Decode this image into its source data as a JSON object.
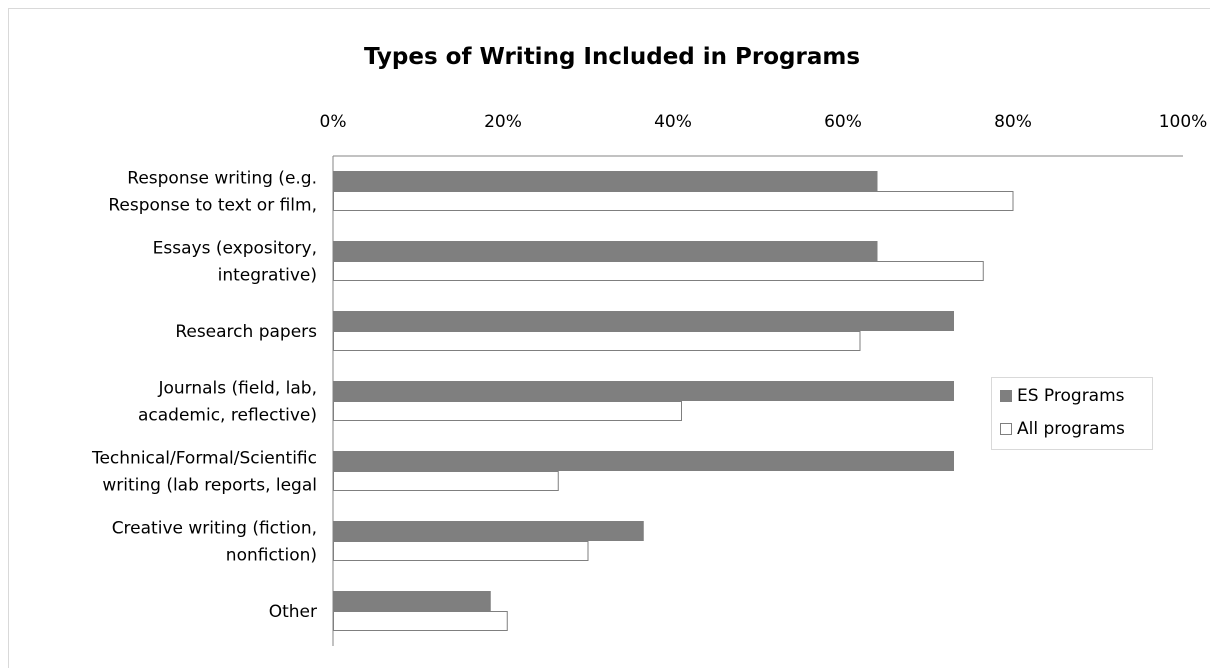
{
  "chart_data": {
    "type": "bar",
    "orientation": "horizontal",
    "title": "Types of Writing Included in Programs",
    "categories": [
      [
        "Response writing (e.g.",
        "Response to text or film,"
      ],
      [
        "Essays (expository,",
        "integrative)"
      ],
      [
        "Research papers"
      ],
      [
        "Journals (field, lab,",
        "academic, reflective)"
      ],
      [
        "Technical/Formal/Scientific",
        "writing (lab reports, legal"
      ],
      [
        "Creative writing (fiction,",
        "nonfiction)"
      ],
      [
        "Other"
      ]
    ],
    "series": [
      {
        "name": "ES Programs",
        "color": "#7f7f7f",
        "values": [
          64,
          64,
          73,
          73,
          73,
          36.5,
          18.5
        ]
      },
      {
        "name": "All programs",
        "color": "#ffffff",
        "values": [
          80,
          76.5,
          62,
          41,
          26.5,
          30,
          20.5
        ]
      }
    ],
    "xlim": [
      0,
      100
    ],
    "xticks": [
      "0%",
      "20%",
      "40%",
      "60%",
      "80%",
      "100%"
    ],
    "axis_position": "top",
    "grid": false,
    "legend": "right"
  }
}
